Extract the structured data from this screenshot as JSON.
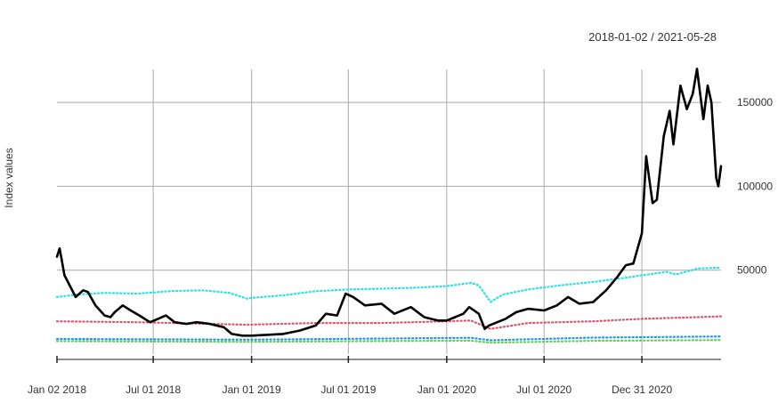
{
  "chart_data": {
    "type": "line",
    "title": "",
    "date_range": "2018-01-02 / 2021-05-28",
    "xlabel": "",
    "ylabel": "Index values",
    "x_range": [
      "2018-01-02",
      "2021-05-28"
    ],
    "ylim": [
      0,
      175000
    ],
    "grid": true,
    "legend": "none",
    "x_ticks": [
      {
        "date": "2018-01-02",
        "label": "Jan 02 2018"
      },
      {
        "date": "2018-07-01",
        "label": "Jul 01 2018"
      },
      {
        "date": "2019-01-01",
        "label": "Jan 01 2019"
      },
      {
        "date": "2019-07-01",
        "label": "Jul 01 2019"
      },
      {
        "date": "2020-01-01",
        "label": "Jan 01 2020"
      },
      {
        "date": "2020-07-01",
        "label": "Jul 01 2020"
      },
      {
        "date": "2020-12-31",
        "label": "Dec 31 2020"
      }
    ],
    "y_ticks": [
      {
        "value": 50000,
        "label": "50000"
      },
      {
        "value": 100000,
        "label": "100000"
      },
      {
        "value": 150000,
        "label": "150000"
      }
    ],
    "series": [
      {
        "color": "#000000",
        "style": "solid",
        "width": 2.6,
        "points": [
          [
            "2018-01-02",
            58000
          ],
          [
            "2018-01-07",
            63000
          ],
          [
            "2018-01-16",
            47000
          ],
          [
            "2018-02-06",
            34000
          ],
          [
            "2018-02-20",
            38000
          ],
          [
            "2018-03-01",
            37000
          ],
          [
            "2018-03-15",
            29000
          ],
          [
            "2018-04-01",
            23000
          ],
          [
            "2018-04-12",
            22000
          ],
          [
            "2018-04-20",
            25000
          ],
          [
            "2018-05-05",
            29000
          ],
          [
            "2018-05-20",
            26000
          ],
          [
            "2018-06-05",
            23000
          ],
          [
            "2018-06-25",
            19000
          ],
          [
            "2018-07-10",
            21000
          ],
          [
            "2018-07-25",
            23000
          ],
          [
            "2018-08-10",
            19000
          ],
          [
            "2018-09-01",
            18000
          ],
          [
            "2018-09-20",
            19000
          ],
          [
            "2018-10-15",
            18000
          ],
          [
            "2018-11-10",
            16000
          ],
          [
            "2018-11-25",
            12000
          ],
          [
            "2018-12-15",
            11000
          ],
          [
            "2019-01-01",
            11000
          ],
          [
            "2019-02-01",
            11500
          ],
          [
            "2019-03-01",
            12000
          ],
          [
            "2019-04-01",
            14000
          ],
          [
            "2019-05-01",
            17000
          ],
          [
            "2019-05-20",
            24000
          ],
          [
            "2019-06-10",
            23000
          ],
          [
            "2019-06-26",
            36000
          ],
          [
            "2019-07-10",
            34000
          ],
          [
            "2019-08-01",
            29000
          ],
          [
            "2019-09-01",
            30000
          ],
          [
            "2019-09-25",
            24000
          ],
          [
            "2019-10-26",
            28000
          ],
          [
            "2019-11-20",
            22000
          ],
          [
            "2019-12-15",
            20000
          ],
          [
            "2020-01-01",
            20000
          ],
          [
            "2020-02-01",
            24000
          ],
          [
            "2020-02-12",
            28000
          ],
          [
            "2020-03-01",
            24000
          ],
          [
            "2020-03-12",
            15000
          ],
          [
            "2020-03-20",
            17000
          ],
          [
            "2020-04-20",
            21000
          ],
          [
            "2020-05-10",
            25000
          ],
          [
            "2020-06-01",
            27000
          ],
          [
            "2020-07-01",
            26000
          ],
          [
            "2020-07-25",
            29000
          ],
          [
            "2020-08-15",
            34000
          ],
          [
            "2020-09-05",
            30000
          ],
          [
            "2020-10-01",
            31000
          ],
          [
            "2020-10-25",
            38000
          ],
          [
            "2020-11-15",
            46000
          ],
          [
            "2020-12-01",
            53000
          ],
          [
            "2020-12-15",
            54000
          ],
          [
            "2020-12-31",
            72000
          ],
          [
            "2021-01-08",
            118000
          ],
          [
            "2021-01-20",
            90000
          ],
          [
            "2021-01-28",
            92000
          ],
          [
            "2021-02-10",
            130000
          ],
          [
            "2021-02-21",
            145000
          ],
          [
            "2021-02-28",
            125000
          ],
          [
            "2021-03-13",
            160000
          ],
          [
            "2021-03-25",
            146000
          ],
          [
            "2021-04-05",
            155000
          ],
          [
            "2021-04-13",
            170000
          ],
          [
            "2021-04-25",
            140000
          ],
          [
            "2021-05-03",
            160000
          ],
          [
            "2021-05-10",
            150000
          ],
          [
            "2021-05-19",
            105000
          ],
          [
            "2021-05-23",
            100000
          ],
          [
            "2021-05-28",
            112000
          ]
        ]
      },
      {
        "color": "#28e2e5",
        "style": "dotted",
        "width": 2.2,
        "points": [
          [
            "2018-01-02",
            34000
          ],
          [
            "2018-02-08",
            35500
          ],
          [
            "2018-04-01",
            36500
          ],
          [
            "2018-06-01",
            36000
          ],
          [
            "2018-08-01",
            37500
          ],
          [
            "2018-10-01",
            38000
          ],
          [
            "2018-11-20",
            36500
          ],
          [
            "2018-12-24",
            33000
          ],
          [
            "2019-01-01",
            33500
          ],
          [
            "2019-03-01",
            35000
          ],
          [
            "2019-05-01",
            37500
          ],
          [
            "2019-07-01",
            38500
          ],
          [
            "2019-09-01",
            39000
          ],
          [
            "2019-11-01",
            39500
          ],
          [
            "2020-01-01",
            40500
          ],
          [
            "2020-02-15",
            42500
          ],
          [
            "2020-03-01",
            41000
          ],
          [
            "2020-03-23",
            31000
          ],
          [
            "2020-04-15",
            35500
          ],
          [
            "2020-06-01",
            38500
          ],
          [
            "2020-08-01",
            41000
          ],
          [
            "2020-10-01",
            43000
          ],
          [
            "2020-12-01",
            45500
          ],
          [
            "2020-12-31",
            47000
          ],
          [
            "2021-02-15",
            49000
          ],
          [
            "2021-03-05",
            47500
          ],
          [
            "2021-04-15",
            51000
          ],
          [
            "2021-05-28",
            51500
          ]
        ]
      },
      {
        "color": "#df536b",
        "style": "dotted",
        "width": 2.2,
        "points": [
          [
            "2018-01-02",
            19500
          ],
          [
            "2018-06-01",
            19000
          ],
          [
            "2018-12-24",
            17500
          ],
          [
            "2019-05-01",
            18500
          ],
          [
            "2019-09-01",
            18500
          ],
          [
            "2020-01-01",
            19500
          ],
          [
            "2020-02-15",
            20000
          ],
          [
            "2020-03-23",
            15000
          ],
          [
            "2020-06-01",
            18500
          ],
          [
            "2020-10-01",
            19500
          ],
          [
            "2020-12-31",
            21000
          ],
          [
            "2021-04-15",
            22000
          ],
          [
            "2021-05-28",
            22500
          ]
        ]
      },
      {
        "color": "#2297e6",
        "style": "dotted",
        "width": 2.2,
        "points": [
          [
            "2018-01-02",
            9000
          ],
          [
            "2018-12-24",
            8600
          ],
          [
            "2019-06-01",
            9000
          ],
          [
            "2020-02-15",
            9700
          ],
          [
            "2020-03-23",
            8200
          ],
          [
            "2020-10-01",
            9800
          ],
          [
            "2021-05-28",
            10500
          ]
        ]
      },
      {
        "color": "#61d04f",
        "style": "dotted",
        "width": 2.2,
        "points": [
          [
            "2018-01-02",
            7700
          ],
          [
            "2018-12-24",
            7300
          ],
          [
            "2019-06-01",
            7600
          ],
          [
            "2020-02-15",
            8000
          ],
          [
            "2020-03-23",
            6800
          ],
          [
            "2020-10-01",
            7900
          ],
          [
            "2021-05-28",
            8400
          ]
        ]
      }
    ]
  }
}
